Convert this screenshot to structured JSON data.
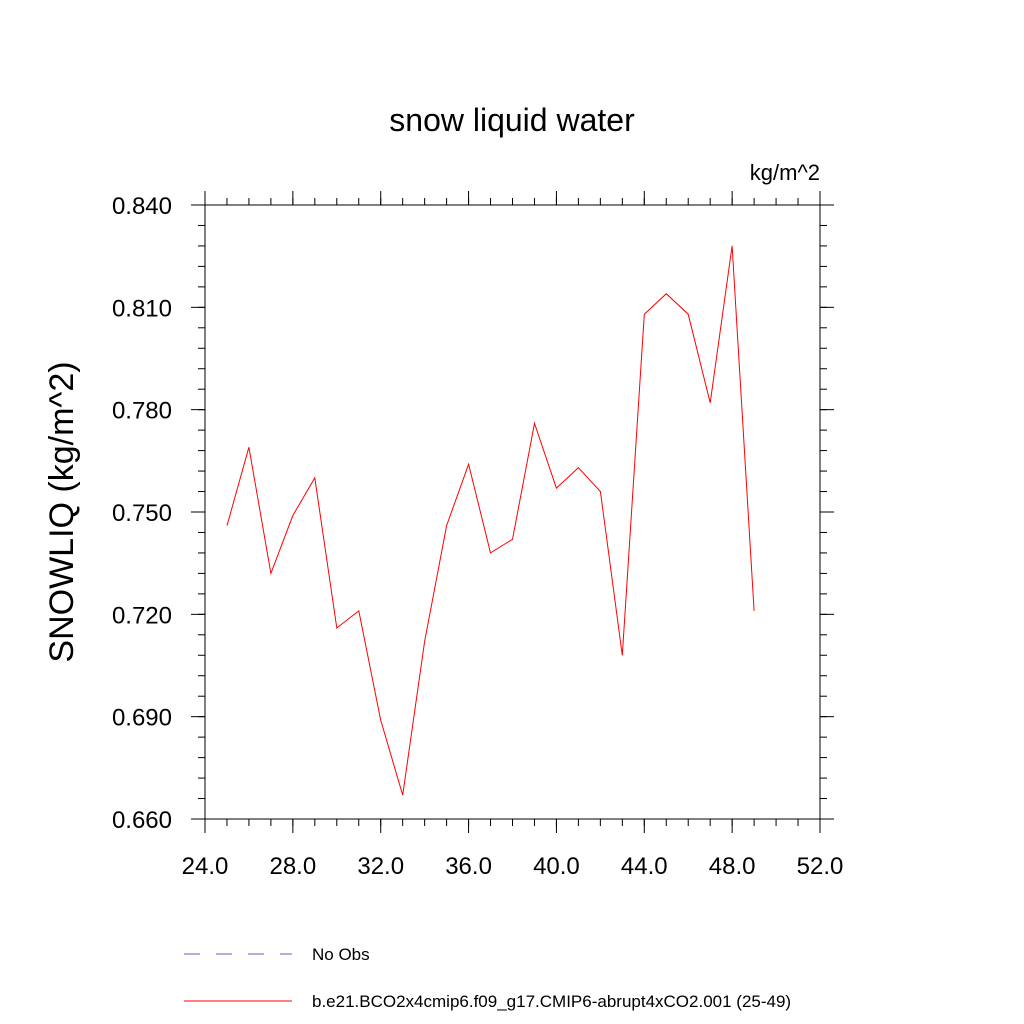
{
  "chart_data": {
    "type": "line",
    "title": "snow liquid water",
    "units_label": "kg/m^2",
    "ylabel": "SNOWLIQ  (kg/m^2)",
    "xlabel": "",
    "xlim": [
      24.0,
      52.0
    ],
    "ylim": [
      0.66,
      0.84
    ],
    "x_ticks": [
      "24.0",
      "28.0",
      "32.0",
      "36.0",
      "40.0",
      "44.0",
      "48.0",
      "52.0"
    ],
    "y_ticks": [
      "0.660",
      "0.690",
      "0.720",
      "0.750",
      "0.780",
      "0.810",
      "0.840"
    ],
    "grid": false,
    "series": [
      {
        "name": "b.e21.BCO2x4cmip6.f09_g17.CMIP6-abrupt4xCO2.001 (25-49)",
        "color": "#ff0000",
        "style": "solid",
        "x": [
          25,
          26,
          27,
          28,
          29,
          30,
          31,
          32,
          33,
          34,
          35,
          36,
          37,
          38,
          39,
          40,
          41,
          42,
          43,
          44,
          45,
          46,
          47,
          48,
          49
        ],
        "values": [
          0.746,
          0.769,
          0.732,
          0.749,
          0.76,
          0.716,
          0.721,
          0.689,
          0.667,
          0.712,
          0.746,
          0.764,
          0.738,
          0.742,
          0.776,
          0.757,
          0.763,
          0.756,
          0.708,
          0.808,
          0.814,
          0.808,
          0.782,
          0.828,
          0.721
        ]
      }
    ],
    "legend": {
      "placement": "bottom-left",
      "entries": [
        {
          "label": "No Obs",
          "color": "#6a5acd",
          "style": "dashed"
        },
        {
          "label": "b.e21.BCO2x4cmip6.f09_g17.CMIP6-abrupt4xCO2.001 (25-49)",
          "color": "#ff0000",
          "style": "solid"
        }
      ]
    }
  }
}
